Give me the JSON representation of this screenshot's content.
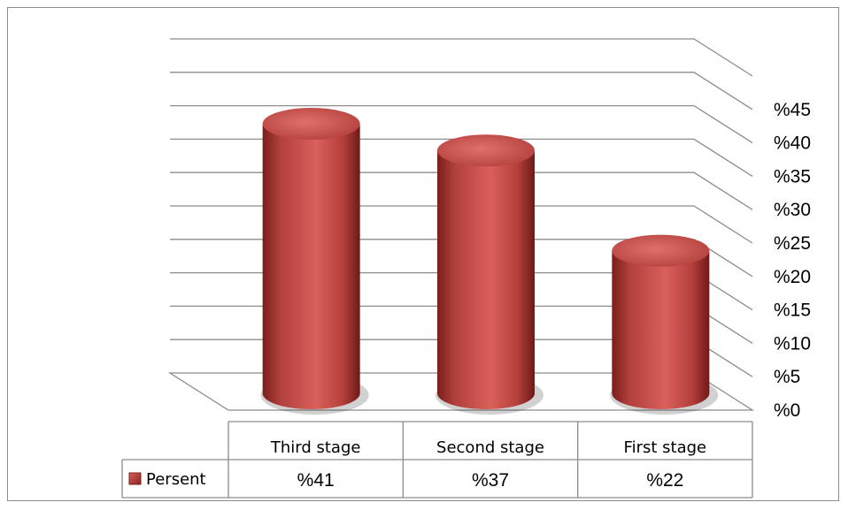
{
  "chart_data": {
    "type": "bar",
    "style": "3d-cylinder",
    "categories": [
      "Third stage",
      "Second stage",
      "First stage"
    ],
    "series": [
      {
        "name": "Persent",
        "values": [
          41,
          37,
          22
        ],
        "value_labels": [
          "%41",
          "%37",
          "%22"
        ],
        "color": "#c0504d"
      }
    ],
    "yticks": [
      "%0",
      "%5",
      "%10",
      "%15",
      "%20",
      "%25",
      "%30",
      "%35",
      "%40",
      "%45"
    ],
    "ylim": [
      0,
      50
    ],
    "title": "",
    "xlabel": "",
    "ylabel": "",
    "grid": true,
    "data_table": true,
    "legend": "data-table"
  }
}
